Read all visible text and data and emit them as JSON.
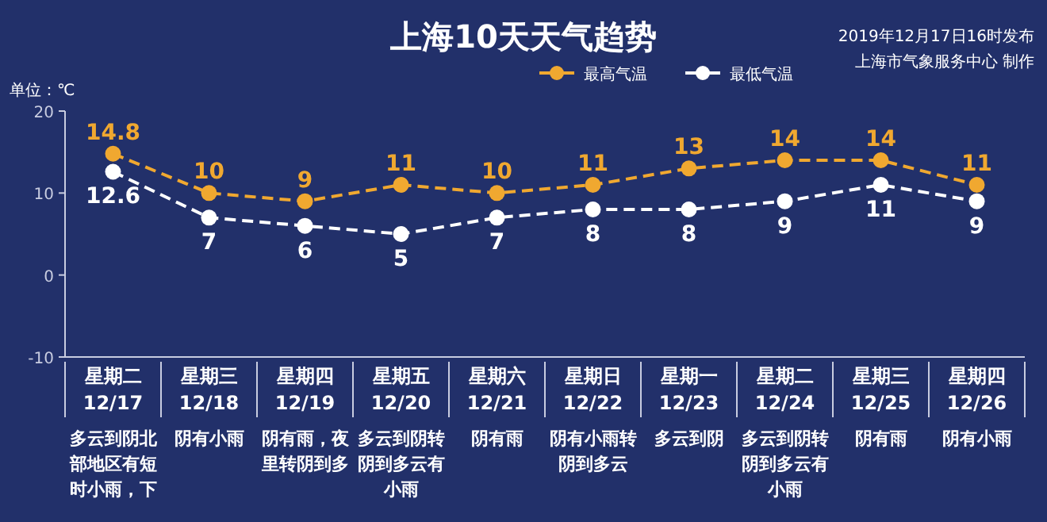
{
  "chart_data": {
    "type": "line",
    "title": "上海10天天气趋势",
    "ylabel": "单位：℃",
    "categories": [
      "星期二\n12/17",
      "星期三\n12/18",
      "星期四\n12/19",
      "星期五\n12/20",
      "星期六\n12/21",
      "星期日\n12/22",
      "星期一\n12/23",
      "星期二\n12/24",
      "星期三\n12/25",
      "星期四\n12/26"
    ],
    "series": [
      {
        "name": "最高气温",
        "color": "#f0a830",
        "values": [
          14.8,
          10,
          9,
          11,
          10,
          11,
          13,
          14,
          14,
          11
        ]
      },
      {
        "name": "最低气温",
        "color": "#ffffff",
        "values": [
          12.6,
          7,
          6,
          5,
          7,
          8,
          8,
          9,
          11,
          9
        ]
      }
    ],
    "ylim": [
      -10,
      20
    ],
    "yticks": [
      -10,
      0,
      10,
      20
    ],
    "data_labels": true,
    "marker": "circle",
    "line_style": "dashed",
    "legend": "top",
    "annotations": [
      "多云到阴北部地区有短时小雨，下",
      "阴有小雨",
      "阴有雨，夜里转阴到多",
      "多云到阴转阴到多云有小雨",
      "阴有雨",
      "阴有小雨转阴到多云",
      "多云到阴",
      "多云到阴转阴到多云有小雨",
      "阴有雨",
      "阴有小雨",
      "2019年12月17日16时发布",
      "上海市气象服务中心 制作"
    ]
  }
}
